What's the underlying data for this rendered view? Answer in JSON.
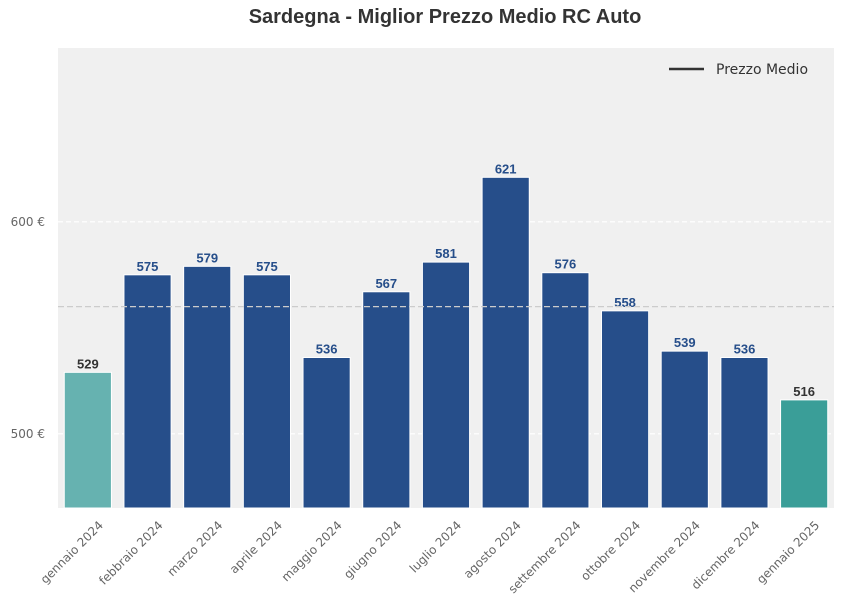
{
  "chart_data": {
    "type": "bar",
    "title": "Sardegna - Miglior Prezzo Medio RC Auto",
    "xlabel": "",
    "ylabel": "",
    "categories": [
      "gennaio 2024",
      "febbraio 2024",
      "marzo 2024",
      "aprile 2024",
      "maggio 2024",
      "giugno 2024",
      "luglio 2024",
      "agosto 2024",
      "settembre 2024",
      "ottobre 2024",
      "novembre 2024",
      "dicembre 2024",
      "gennaio 2025"
    ],
    "values": [
      529,
      575,
      579,
      575,
      536,
      567,
      581,
      621,
      576,
      558,
      539,
      536,
      516
    ],
    "value_labels": [
      "529",
      "575",
      "579",
      "575",
      "536",
      "567",
      "581",
      "621",
      "576",
      "558",
      "539",
      "536",
      "516"
    ],
    "bar_colors": [
      "#66b2b0",
      "#264e8a",
      "#264e8a",
      "#264e8a",
      "#264e8a",
      "#264e8a",
      "#264e8a",
      "#264e8a",
      "#264e8a",
      "#264e8a",
      "#264e8a",
      "#264e8a",
      "#3a9e98"
    ],
    "label_colors": [
      "#333333",
      "#264e8a",
      "#264e8a",
      "#264e8a",
      "#264e8a",
      "#264e8a",
      "#264e8a",
      "#264e8a",
      "#264e8a",
      "#264e8a",
      "#264e8a",
      "#264e8a",
      "#333333"
    ],
    "ylim": [
      465,
      682
    ],
    "yticks": [
      500,
      600
    ],
    "ytick_labels": [
      "500 €",
      "600 €"
    ],
    "reference_line": {
      "value": 560,
      "style": "dashed"
    },
    "legend": {
      "label": "Prezzo Medio",
      "position": "top-right"
    },
    "grid": true,
    "colors": {
      "background": "#f0f0f0",
      "bar_main": "#264e8a",
      "bar_first": "#66b2b0",
      "bar_last": "#3a9e98",
      "reference": "#cccccc"
    }
  }
}
